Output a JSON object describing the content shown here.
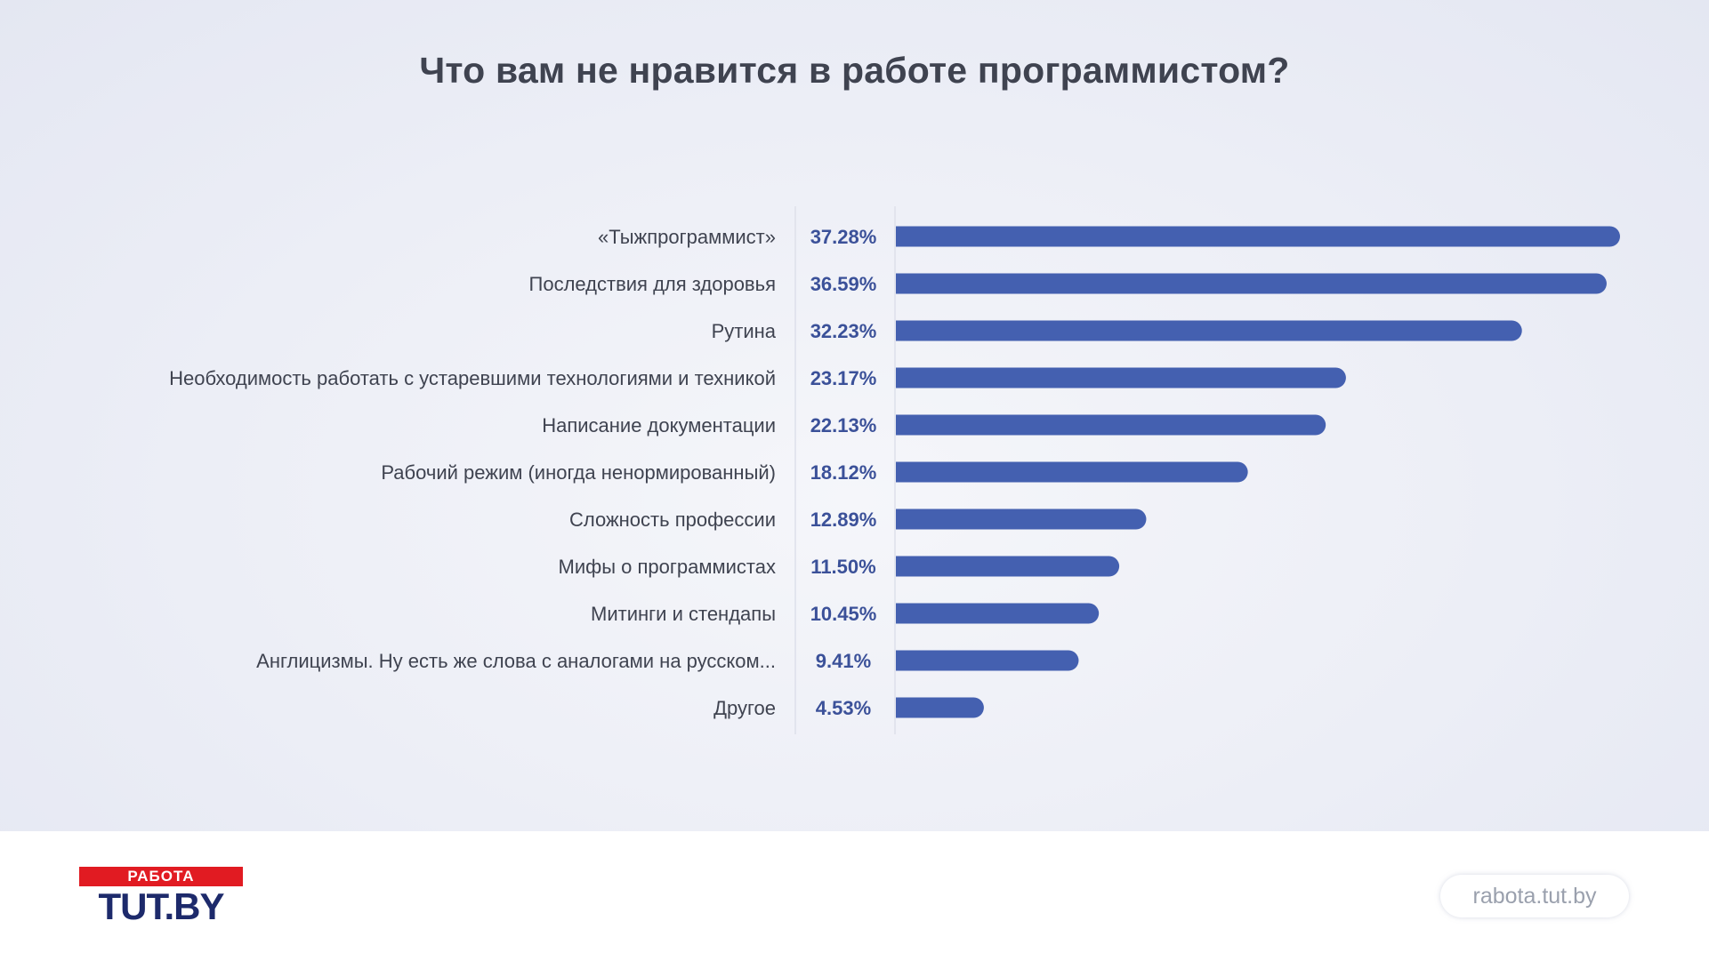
{
  "chart_data": {
    "type": "bar",
    "orientation": "horizontal",
    "title": "Что вам не нравится в работе программистом?",
    "categories": [
      "«Тыжпрограммист»",
      "Последствия для здоровья",
      "Рутина",
      "Необходимость работать с устаревшими технологиями и техникой",
      "Написание документации",
      "Рабочий режим (иногда ненормированный)",
      "Сложность профессии",
      "Мифы о программистах",
      "Митинги и стендапы",
      "Англицизмы. Ну есть же слова с аналогами на русском...",
      "Другое"
    ],
    "values": [
      37.28,
      36.59,
      32.23,
      23.17,
      22.13,
      18.12,
      12.89,
      11.5,
      10.45,
      9.41,
      4.53
    ],
    "value_labels": [
      "37.28%",
      "36.59%",
      "32.23%",
      "23.17%",
      "22.13%",
      "18.12%",
      "12.89%",
      "11.50%",
      "10.45%",
      "9.41%",
      "4.53%"
    ],
    "xlabel": "",
    "ylabel": "",
    "xlim": [
      0,
      38
    ],
    "grid": false,
    "legend": "none",
    "bar_color": "#4460b0",
    "label_color": "#3f4350",
    "value_color": "#3b5199"
  },
  "footer": {
    "logo_top": "РАБОТА",
    "logo_bottom": "TUT.BY",
    "site": "rabota.tut.by"
  }
}
